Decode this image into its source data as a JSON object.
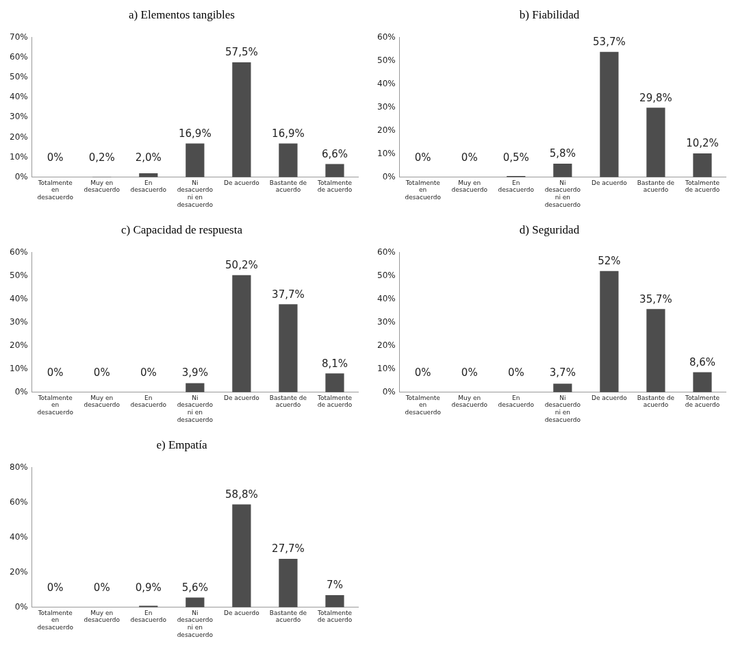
{
  "chart_data": [
    {
      "type": "bar",
      "title": "a) Elementos tangibles",
      "categories": [
        "Totalmente en desacuerdo",
        "Muy en desacuerdo",
        "En desacuerdo",
        "Ni desacuerdo ni en desacuerdo",
        "De acuerdo",
        "Bastante de acuerdo",
        "Totalmente de acuerdo"
      ],
      "values": [
        0,
        0.2,
        2.0,
        16.9,
        57.5,
        16.9,
        6.6
      ],
      "value_labels": [
        "0%",
        "0,2%",
        "2,0%",
        "16,9%",
        "57,5%",
        "16,9%",
        "6,6%"
      ],
      "color": "#4d4d4d",
      "ylim": [
        0,
        70
      ],
      "yticks": [
        {
          "value": 0,
          "label": "0%"
        },
        {
          "value": 10,
          "label": "10%"
        },
        {
          "value": 20,
          "label": "20%"
        },
        {
          "value": 30,
          "label": "30%"
        },
        {
          "value": 40,
          "label": "40%"
        },
        {
          "value": 50,
          "label": "50%"
        },
        {
          "value": 60,
          "label": "60%"
        },
        {
          "value": 70,
          "label": "70%"
        }
      ]
    },
    {
      "type": "bar",
      "title": "b) Fiabilidad",
      "categories": [
        "Totalmente en desacuerdo",
        "Muy en desacuerdo",
        "En desacuerdo",
        "Ni desacuerdo ni en desacuerdo",
        "De acuerdo",
        "Bastante de acuerdo",
        "Totalmente de acuerdo"
      ],
      "values": [
        0,
        0,
        0.5,
        5.8,
        53.7,
        29.8,
        10.2
      ],
      "value_labels": [
        "0%",
        "0%",
        "0,5%",
        "5,8%",
        "53,7%",
        "29,8%",
        "10,2%"
      ],
      "color": "#4d4d4d",
      "ylim": [
        0,
        60
      ],
      "yticks": [
        {
          "value": 0,
          "label": "0%"
        },
        {
          "value": 10,
          "label": "10%"
        },
        {
          "value": 20,
          "label": "20%"
        },
        {
          "value": 30,
          "label": "30%"
        },
        {
          "value": 40,
          "label": "40%"
        },
        {
          "value": 50,
          "label": "50%"
        },
        {
          "value": 60,
          "label": "60%"
        }
      ]
    },
    {
      "type": "bar",
      "title": "c) Capacidad de respuesta",
      "categories": [
        "Totalmente en desacuerdo",
        "Muy en desacuerdo",
        "En desacuerdo",
        "Ni desacuerdo ni en desacuerdo",
        "De acuerdo",
        "Bastante de acuerdo",
        "Totalmente de acuerdo"
      ],
      "values": [
        0,
        0,
        0,
        3.9,
        50.2,
        37.7,
        8.1
      ],
      "value_labels": [
        "0%",
        "0%",
        "0%",
        "3,9%",
        "50,2%",
        "37,7%",
        "8,1%"
      ],
      "color": "#4d4d4d",
      "ylim": [
        0,
        60
      ],
      "yticks": [
        {
          "value": 0,
          "label": "0%"
        },
        {
          "value": 10,
          "label": "10%"
        },
        {
          "value": 20,
          "label": "20%"
        },
        {
          "value": 30,
          "label": "30%"
        },
        {
          "value": 40,
          "label": "40%"
        },
        {
          "value": 50,
          "label": "50%"
        },
        {
          "value": 60,
          "label": "60%"
        }
      ]
    },
    {
      "type": "bar",
      "title": "d) Seguridad",
      "categories": [
        "Totalmente en desacuerdo",
        "Muy en desacuerdo",
        "En desacuerdo",
        "Ni desacuerdo ni en desacuerdo",
        "De acuerdo",
        "Bastante de acuerdo",
        "Totalmente de acuerdo"
      ],
      "values": [
        0,
        0,
        0,
        3.7,
        52,
        35.7,
        8.6
      ],
      "value_labels": [
        "0%",
        "0%",
        "0%",
        "3,7%",
        "52%",
        "35,7%",
        "8,6%"
      ],
      "color": "#4d4d4d",
      "ylim": [
        0,
        60
      ],
      "yticks": [
        {
          "value": 0,
          "label": "0%"
        },
        {
          "value": 10,
          "label": "10%"
        },
        {
          "value": 20,
          "label": "20%"
        },
        {
          "value": 30,
          "label": "30%"
        },
        {
          "value": 40,
          "label": "40%"
        },
        {
          "value": 50,
          "label": "50%"
        },
        {
          "value": 60,
          "label": "60%"
        }
      ]
    },
    {
      "type": "bar",
      "title": "e) Empatía",
      "categories": [
        "Totalmente en desacuerdo",
        "Muy en desacuerdo",
        "En desacuerdo",
        "Ni desacuerdo ni en desacuerdo",
        "De acuerdo",
        "Bastante de acuerdo",
        "Totalmente de acuerdo"
      ],
      "values": [
        0,
        0,
        0.9,
        5.6,
        58.8,
        27.7,
        7
      ],
      "value_labels": [
        "0%",
        "0%",
        "0,9%",
        "5,6%",
        "58,8%",
        "27,7%",
        "7%"
      ],
      "color": "#4d4d4d",
      "ylim": [
        0,
        80
      ],
      "yticks": [
        {
          "value": 0,
          "label": "0%"
        },
        {
          "value": 20,
          "label": "20%"
        },
        {
          "value": 40,
          "label": "40%"
        },
        {
          "value": 60,
          "label": "60%"
        },
        {
          "value": 80,
          "label": "80%"
        }
      ]
    }
  ]
}
